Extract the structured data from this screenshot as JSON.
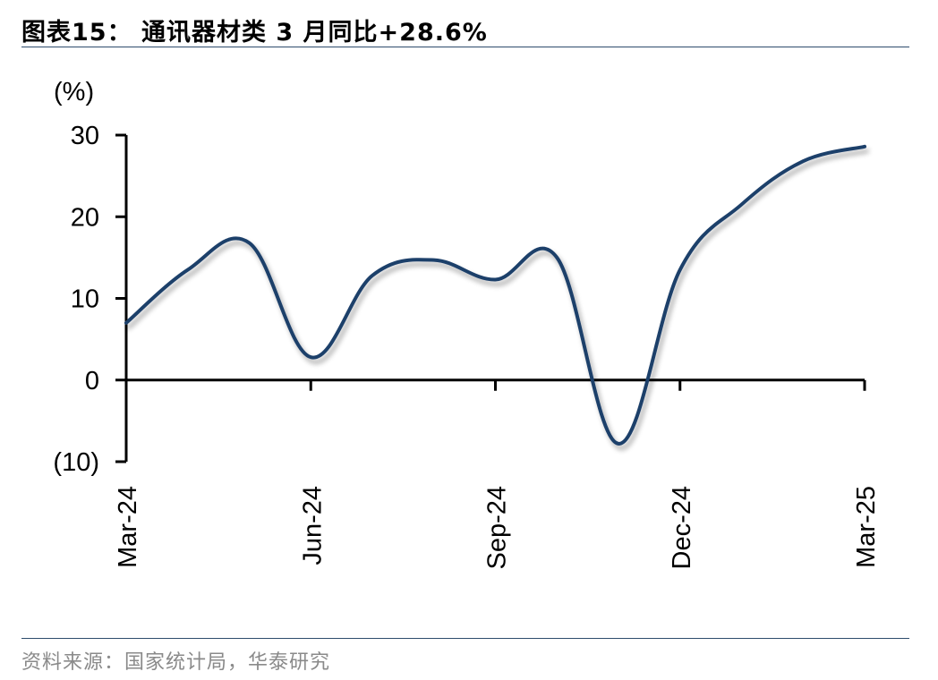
{
  "header": {
    "title": "图表15： 通讯器材类 3 月同比+28.6%"
  },
  "footer": {
    "source": "资料来源：国家统计局，华泰研究"
  },
  "colors": {
    "line": "#1f3f6b",
    "rule": "#2e4c6d",
    "source_text": "#8a8a8a"
  },
  "chart_data": {
    "type": "line",
    "title": "",
    "xlabel": "",
    "ylabel": "",
    "y_unit": "(%)",
    "ylim": [
      -10,
      30
    ],
    "y_ticks": [
      30,
      20,
      10,
      0,
      -10
    ],
    "y_tick_labels": [
      "30",
      "20",
      "10",
      "0",
      "(10)"
    ],
    "x_tick_labels": [
      "Mar-24",
      "Jun-24",
      "Sep-24",
      "Dec-24",
      "Mar-25"
    ],
    "grid": false,
    "legend": "none",
    "x": [
      "2024-03",
      "2024-04",
      "2024-05",
      "2024-06",
      "2024-07",
      "2024-08",
      "2024-09",
      "2024-10",
      "2024-11",
      "2024-12",
      "2025-01",
      "2025-02",
      "2025-03"
    ],
    "series": [
      {
        "values": [
          7.0,
          13.5,
          16.8,
          2.8,
          12.8,
          14.7,
          12.3,
          15.0,
          -7.8,
          13.5,
          21.5,
          26.8,
          28.6
        ]
      }
    ]
  }
}
